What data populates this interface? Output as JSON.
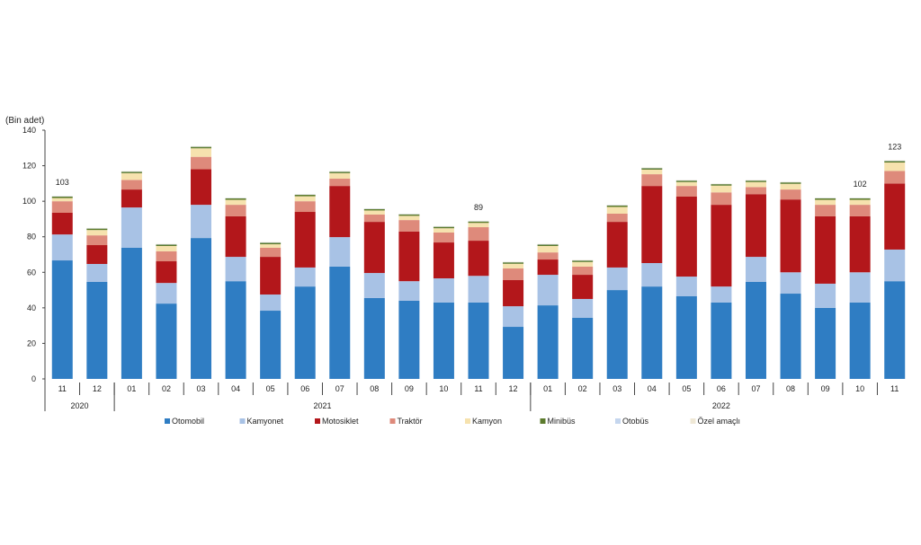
{
  "chart_data": {
    "type": "bar",
    "stacked": true,
    "ylabel": "(Bin adet)",
    "ylim": [
      0,
      140
    ],
    "yticks": [
      0,
      20,
      40,
      60,
      80,
      100,
      120,
      140
    ],
    "grid": false,
    "legend_position": "bottom",
    "categories": [
      "11",
      "12",
      "01",
      "02",
      "03",
      "04",
      "05",
      "06",
      "07",
      "08",
      "09",
      "10",
      "11",
      "12",
      "01",
      "02",
      "03",
      "04",
      "05",
      "06",
      "07",
      "08",
      "09",
      "10",
      "11"
    ],
    "years": [
      {
        "label": "2020",
        "start": 0,
        "end": 1
      },
      {
        "label": "2021",
        "start": 2,
        "end": 13
      },
      {
        "label": "2022",
        "start": 14,
        "end": 24
      }
    ],
    "series": [
      {
        "name": "Otomobil",
        "color": "#2f7dc3",
        "values": [
          66.7,
          54.6,
          73.8,
          42.4,
          79.3,
          55.0,
          38.4,
          52.0,
          63.2,
          45.5,
          44.0,
          43.0,
          43.0,
          29.3,
          41.4,
          34.4,
          50.0,
          52.0,
          46.5,
          43.0,
          54.6,
          48.0,
          40.0,
          43.0,
          55.0
        ]
      },
      {
        "name": "Kamyonet",
        "color": "#a8c2e5",
        "values": [
          14.6,
          10.1,
          22.7,
          11.6,
          18.7,
          13.7,
          9.1,
          10.7,
          16.6,
          14.1,
          11.0,
          13.6,
          15.0,
          11.6,
          17.2,
          10.6,
          12.7,
          13.2,
          11.1,
          9.0,
          14.1,
          12.0,
          13.6,
          17.0,
          17.8
        ]
      },
      {
        "name": "Motosiklet",
        "color": "#b3171b",
        "values": [
          12.2,
          10.6,
          10.1,
          12.2,
          20.0,
          22.8,
          21.2,
          31.3,
          28.8,
          28.8,
          27.9,
          20.2,
          19.8,
          14.7,
          8.6,
          13.6,
          25.7,
          43.4,
          45.0,
          46.0,
          35.3,
          41.0,
          37.9,
          31.5,
          37.2
        ]
      },
      {
        "name": "Traktör",
        "color": "#de8a7b",
        "values": [
          6.5,
          5.5,
          5.4,
          5.6,
          7.0,
          6.5,
          5.1,
          6.0,
          4.1,
          4.1,
          6.5,
          5.6,
          7.6,
          6.6,
          4.0,
          4.6,
          4.6,
          6.6,
          6.0,
          7.0,
          4.0,
          5.6,
          6.5,
          6.5,
          7.0
        ]
      },
      {
        "name": "Kamyon",
        "color": "#f6e2ae",
        "values": [
          1.8,
          3.0,
          3.8,
          3.0,
          4.8,
          2.8,
          2.0,
          2.8,
          3.1,
          2.3,
          2.4,
          2.4,
          2.4,
          2.6,
          3.6,
          2.6,
          3.8,
          2.6,
          2.2,
          3.8,
          2.8,
          3.2,
          2.8,
          2.8,
          4.8
        ]
      },
      {
        "name": "Minibüs",
        "color": "#5c7b2d",
        "values": [
          0.8,
          0.8,
          0.8,
          0.8,
          0.8,
          0.8,
          0.8,
          0.8,
          0.8,
          0.8,
          0.8,
          0.8,
          0.8,
          0.8,
          0.8,
          0.8,
          0.8,
          0.8,
          0.8,
          0.8,
          0.8,
          0.8,
          0.8,
          0.8,
          0.8
        ]
      },
      {
        "name": "Otobüs",
        "color": "#c5d6ee",
        "values": [
          0.2,
          0.2,
          0.2,
          0.2,
          0.2,
          0.2,
          0.2,
          0.2,
          0.2,
          0.2,
          0.2,
          0.2,
          0.2,
          0.2,
          0.2,
          0.2,
          0.2,
          0.2,
          0.2,
          0.2,
          0.2,
          0.2,
          0.2,
          0.2,
          0.2
        ]
      },
      {
        "name": "Özel amaçlı",
        "color": "#efe8d6",
        "values": [
          0.2,
          0.2,
          0.2,
          0.2,
          0.2,
          0.2,
          0.2,
          0.2,
          0.2,
          0.2,
          0.2,
          0.2,
          0.2,
          0.2,
          0.2,
          0.2,
          0.2,
          0.2,
          0.2,
          0.2,
          0.2,
          0.2,
          0.2,
          0.2,
          0.2
        ]
      }
    ],
    "data_labels": [
      {
        "index": 0,
        "text": "103"
      },
      {
        "index": 12,
        "text": "89"
      },
      {
        "index": 23,
        "text": "102"
      },
      {
        "index": 24,
        "text": "123"
      }
    ]
  }
}
